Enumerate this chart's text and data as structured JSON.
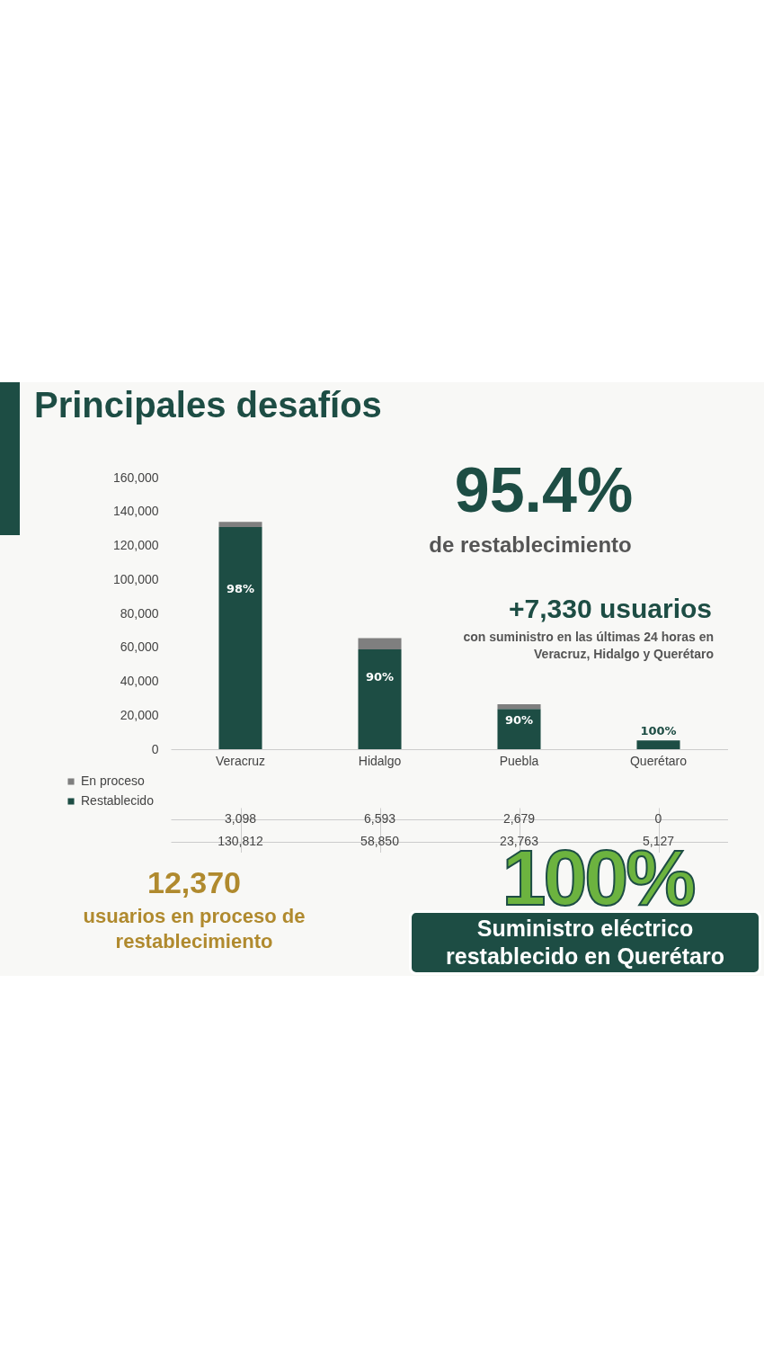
{
  "chart_data": {
    "type": "bar",
    "title": "Principales desafíos",
    "categories": [
      "Veracruz",
      "Hidalgo",
      "Puebla",
      "Querétaro"
    ],
    "stacked": true,
    "series": [
      {
        "name": "Restablecido",
        "color": "#1d4d44",
        "values": [
          130812,
          58850,
          23763,
          5127
        ],
        "value_labels": [
          "130,812",
          "58,850",
          "23,763",
          "5,127"
        ]
      },
      {
        "name": "En proceso",
        "color": "#7f7f7f",
        "values": [
          3098,
          6593,
          2679,
          0
        ],
        "value_labels": [
          "3,098",
          "6,593",
          "2,679",
          "0"
        ]
      }
    ],
    "ylim": [
      0,
      160000
    ],
    "yticks": [
      0,
      {
        "value": 20000,
        "label": "20,000"
      },
      {
        "value": 40000,
        "label": "40,000"
      },
      {
        "value": 60000,
        "label": "60,000"
      },
      {
        "value": 80000,
        "label": "80,000"
      },
      {
        "value": 100000,
        "label": "100,000"
      },
      {
        "value": 120000,
        "label": "120,000"
      },
      {
        "value": 140000,
        "label": "140,000"
      },
      {
        "value": 160000,
        "label": "160,000"
      }
    ],
    "legend": "bottom left",
    "annotations": [
      "95.4%",
      "de restablecimiento",
      "+7,330 usuarios",
      "con suministro en las últimas 24 horas en Veracruz, Hidalgo y Querétaro",
      "12,370",
      "usuarios en proceso de restablecimiento",
      "100%",
      "Suministro eléctrico restablecido en Querétaro",
      "98%",
      "90%",
      "90%",
      "100%"
    ]
  }
}
